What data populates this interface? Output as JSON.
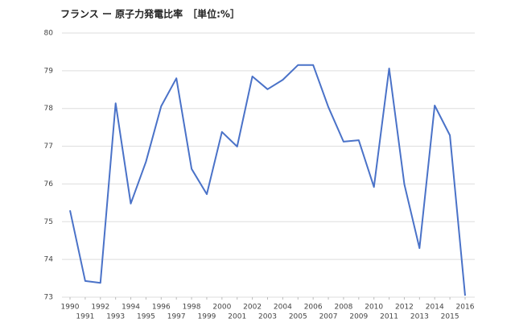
{
  "chart_data": {
    "type": "line",
    "title": "フランス ー 原子力発電比率　［単位:%］",
    "x": [
      1990,
      1991,
      1992,
      1993,
      1994,
      1995,
      1996,
      1997,
      1998,
      1999,
      2000,
      2001,
      2002,
      2003,
      2004,
      2005,
      2006,
      2007,
      2008,
      2009,
      2010,
      2011,
      2012,
      2013,
      2014,
      2015,
      2016
    ],
    "series": [
      {
        "name": "原子力発電比率",
        "color": "#4a72c8",
        "values": [
          75.3,
          73.43,
          73.38,
          78.14,
          75.48,
          76.59,
          78.06,
          78.8,
          76.4,
          75.73,
          77.38,
          76.99,
          78.85,
          78.51,
          78.76,
          79.15,
          79.15,
          78.04,
          77.12,
          77.16,
          75.92,
          79.06,
          75.99,
          74.3,
          78.08,
          77.29,
          73.04
        ]
      }
    ],
    "xlim": [
      1990,
      2016
    ],
    "xticks": [
      1990,
      1991,
      1992,
      1993,
      1994,
      1995,
      1996,
      1997,
      1998,
      1999,
      2000,
      2001,
      2002,
      2003,
      2004,
      2005,
      2006,
      2007,
      2008,
      2009,
      2010,
      2011,
      2012,
      2013,
      2014,
      2015,
      2016
    ],
    "ylim": [
      73,
      80
    ],
    "yticks": [
      73,
      74,
      75,
      76,
      77,
      78,
      79,
      80
    ],
    "grid": true
  }
}
